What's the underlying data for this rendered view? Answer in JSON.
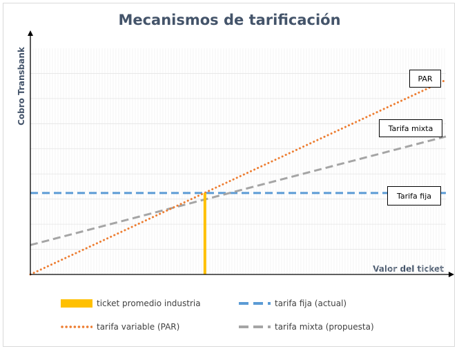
{
  "chart_data": {
    "type": "line",
    "title": "Mecanismos de tarificación",
    "xlabel": "Valor del ticket",
    "ylabel": "Cobro Transbank",
    "xlim": [
      0,
      100
    ],
    "ylim": [
      0,
      100
    ],
    "grid": "vertical",
    "series": [
      {
        "name": "tarifa fija (actual)",
        "style": "dashed",
        "color": "#5b9bd5",
        "x": [
          0,
          100
        ],
        "y": [
          36,
          36
        ],
        "label": "Tarifa fija"
      },
      {
        "name": "tarifa variable (PAR)",
        "style": "dotted",
        "color": "#ed7d31",
        "x": [
          0,
          100
        ],
        "y": [
          0,
          86
        ],
        "label": "PAR"
      },
      {
        "name": "tarifa mixta (propuesta)",
        "style": "dashed",
        "color": "#a5a5a5",
        "x": [
          0,
          100
        ],
        "y": [
          13,
          61
        ],
        "label": "Tarifa mixta"
      },
      {
        "name": "ticket promedio industria",
        "style": "solid",
        "color": "#ffc000",
        "x": [
          42,
          42
        ],
        "y": [
          0,
          36
        ]
      }
    ],
    "legend": [
      {
        "label": "ticket promedio industria",
        "series": 3
      },
      {
        "label": "tarifa fija (actual)",
        "series": 0
      },
      {
        "label": "tarifa variable (PAR)",
        "series": 1
      },
      {
        "label": "tarifa mixta (propuesta)",
        "series": 2
      }
    ],
    "legend_position": "bottom"
  }
}
